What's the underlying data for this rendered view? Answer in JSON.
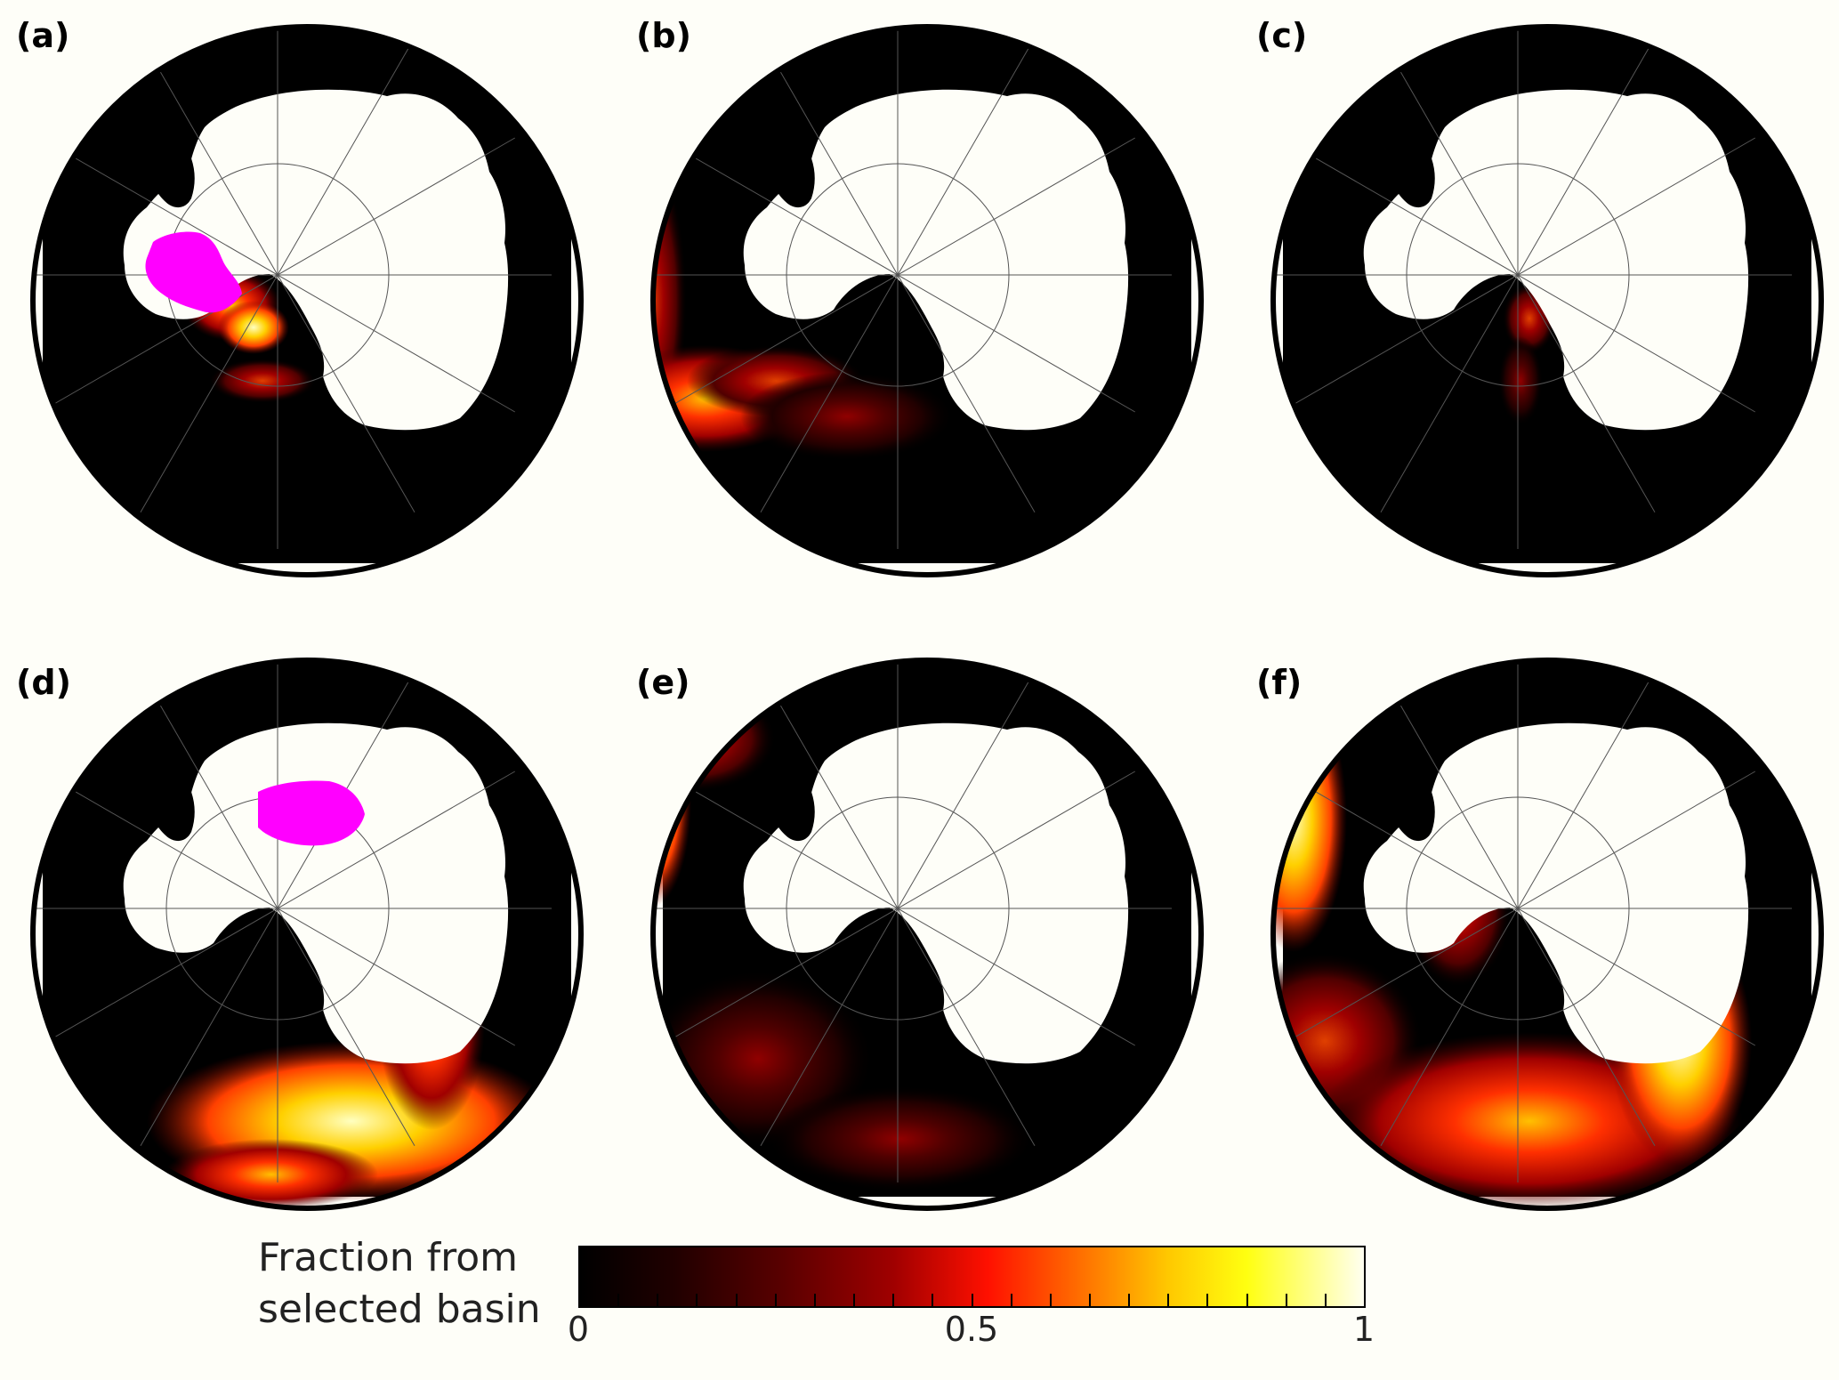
{
  "panels": [
    {
      "label": "(a)",
      "basin": "a",
      "plume": "a"
    },
    {
      "label": "(b)",
      "basin": "b",
      "plume": "b"
    },
    {
      "label": "(c)",
      "basin": "c",
      "plume": "c"
    },
    {
      "label": "(d)",
      "basin": "d",
      "plume": "d"
    },
    {
      "label": "(e)",
      "basin": "e",
      "plume": "e"
    },
    {
      "label": "(f)",
      "basin": "f",
      "plume": "f"
    }
  ],
  "legend": {
    "title_line1": "Fraction from",
    "title_line2": "selected basin",
    "tick_labels": [
      "0",
      "0.5",
      "1"
    ],
    "range": [
      0,
      1
    ]
  },
  "colors": {
    "ocean": "#000000",
    "land": "#fefef8",
    "basin_highlight": "#ff00ff",
    "grid": "#555555",
    "frame": "#000000",
    "colormap": [
      "#000000",
      "#5a0000",
      "#ff1000",
      "#ffc800",
      "#ffff10",
      "#fffff0"
    ]
  }
}
